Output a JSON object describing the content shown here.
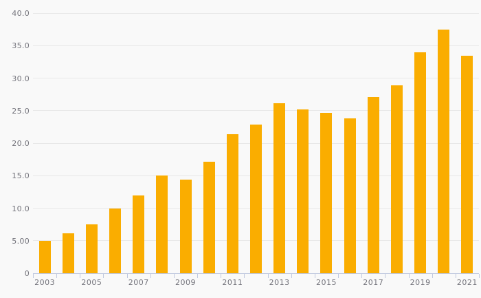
{
  "chart_data": {
    "type": "bar",
    "title": "",
    "xlabel": "",
    "ylabel": "",
    "categories": [
      "2003",
      "2004",
      "2005",
      "2006",
      "2007",
      "2008",
      "2009",
      "2010",
      "2011",
      "2012",
      "2013",
      "2014",
      "2015",
      "2016",
      "2017",
      "2018",
      "2019",
      "2020",
      "2021"
    ],
    "values": [
      5.0,
      6.1,
      7.5,
      10.0,
      12.0,
      15.0,
      14.4,
      17.1,
      21.4,
      22.9,
      26.1,
      25.2,
      24.7,
      23.8,
      27.1,
      28.9,
      34.0,
      37.5,
      33.4
    ],
    "ylim": [
      0,
      40
    ],
    "y_ticks": [
      {
        "value": 40,
        "label": "40.0"
      },
      {
        "value": 35,
        "label": "35.0"
      },
      {
        "value": 30,
        "label": "30.0"
      },
      {
        "value": 25,
        "label": "25.0"
      },
      {
        "value": 20,
        "label": "20.0"
      },
      {
        "value": 15,
        "label": "15.0"
      },
      {
        "value": 10,
        "label": "10.0"
      },
      {
        "value": 5,
        "label": "5.00"
      },
      {
        "value": 0,
        "label": "0"
      }
    ],
    "x_tick_labels": [
      "2003",
      "2005",
      "2007",
      "2009",
      "2011",
      "2013",
      "2015",
      "2017",
      "2019",
      "2021"
    ],
    "grid": "horizontal",
    "legend": "none",
    "colors": {
      "bar": "#faad00",
      "background": "#f9f9f9",
      "gridline": "#e8e8e8",
      "axis": "#c0c9df",
      "label": "#73737b"
    }
  }
}
